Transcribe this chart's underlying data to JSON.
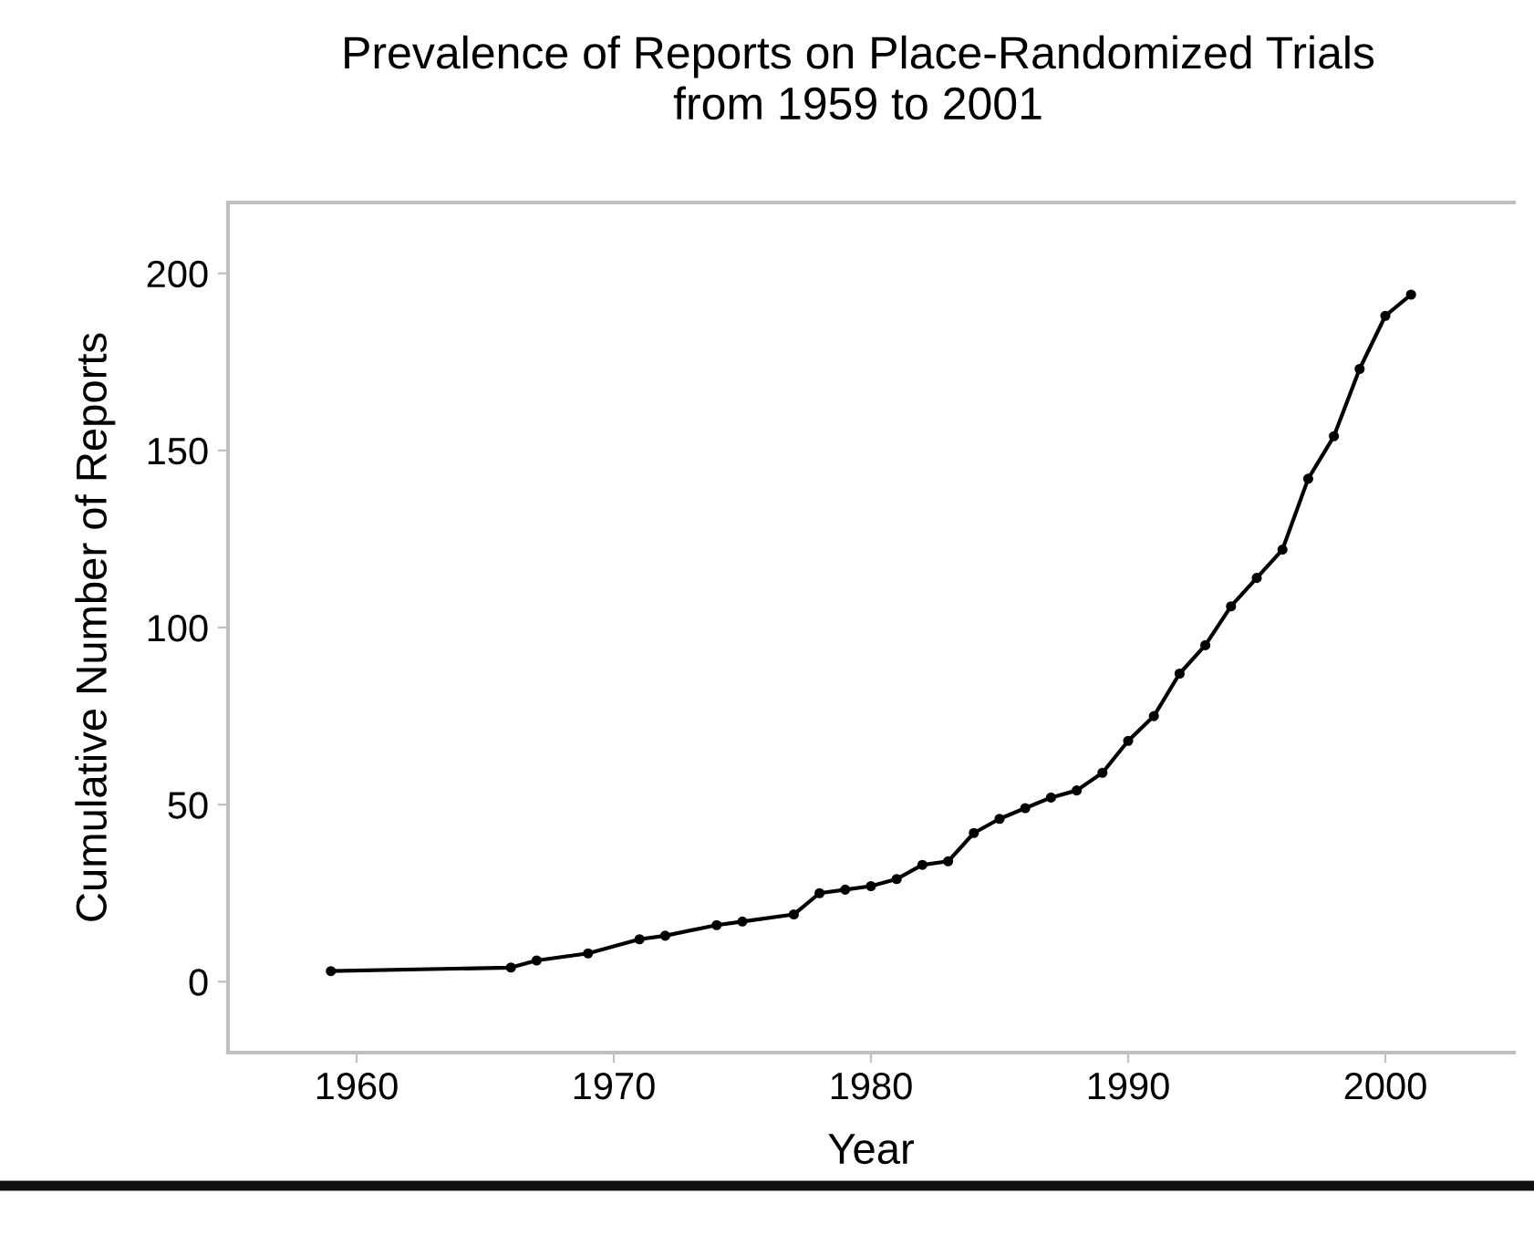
{
  "chart_data": {
    "type": "line",
    "title": "Prevalence of Reports on Place-Randomized Trials\nfrom 1959 to 2001",
    "xlabel": "Year",
    "ylabel": "Cumulative Number of Reports",
    "x": [
      1959,
      1966,
      1967,
      1969,
      1971,
      1972,
      1974,
      1975,
      1977,
      1978,
      1979,
      1980,
      1981,
      1982,
      1983,
      1984,
      1985,
      1986,
      1987,
      1988,
      1989,
      1990,
      1991,
      1992,
      1993,
      1994,
      1995,
      1996,
      1997,
      1998,
      1999,
      2000,
      2001
    ],
    "series": [
      {
        "color": "#000000",
        "values": [
          3,
          4,
          6,
          8,
          12,
          13,
          16,
          17,
          19,
          25,
          26,
          27,
          29,
          33,
          34,
          42,
          46,
          49,
          52,
          54,
          59,
          68,
          75,
          87,
          95,
          106,
          114,
          122,
          142,
          154,
          173,
          188,
          194
        ]
      }
    ],
    "xlim": [
      1955,
      2005
    ],
    "xticks": [
      1960,
      1970,
      1980,
      1990,
      2000
    ],
    "ylim": [
      -20,
      220
    ],
    "yticks": [
      0,
      50,
      100,
      150,
      200
    ],
    "grid": false,
    "legend": false,
    "marker": "circle",
    "line_style": "solid"
  }
}
